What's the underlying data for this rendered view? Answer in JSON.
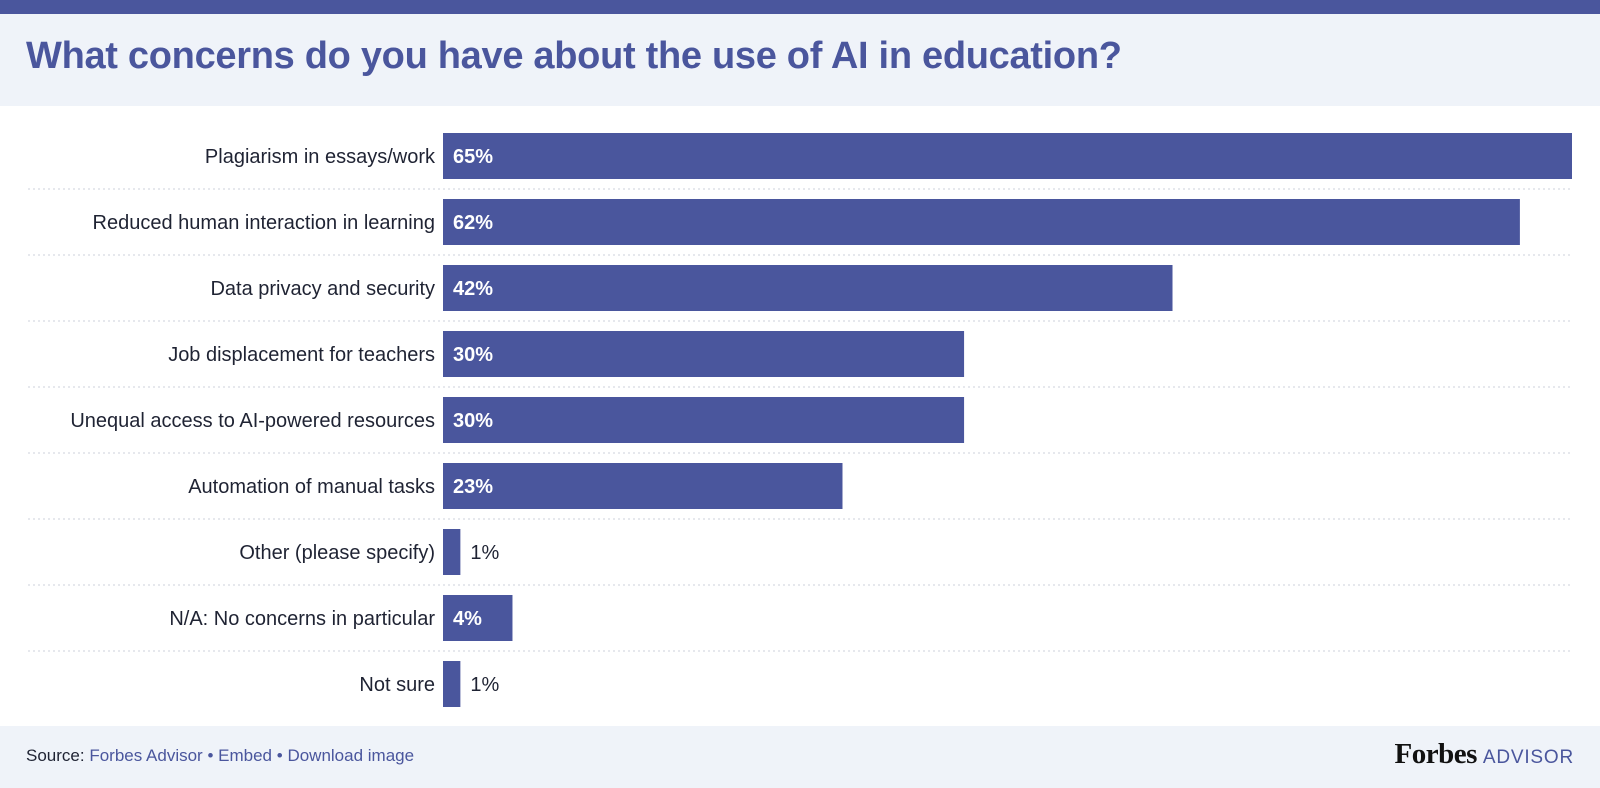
{
  "title": "What concerns do you have about the use of AI in education?",
  "chart_data": {
    "type": "bar",
    "orientation": "horizontal",
    "title": "What concerns do you have about the use of AI in education?",
    "categories": [
      "Plagiarism in essays/work",
      "Reduced human interaction in learning",
      "Data privacy and security",
      "Job displacement for teachers",
      "Unequal access to AI-powered resources",
      "Automation of manual tasks",
      "Other (please specify)",
      "N/A: No concerns in particular",
      "Not sure"
    ],
    "values": [
      65,
      62,
      42,
      30,
      30,
      23,
      1,
      4,
      1
    ],
    "value_labels": [
      "65%",
      "62%",
      "42%",
      "30%",
      "30%",
      "23%",
      "1%",
      "4%",
      "1%"
    ],
    "unit": "%",
    "xlim": [
      0,
      65
    ],
    "grid": false,
    "legend": "none",
    "colors": {
      "bar": "#4a569d",
      "title": "#4a569d",
      "label_inside": "#ffffff",
      "label_outside": "#1f2333",
      "separator": "#cdd1db"
    }
  },
  "footer": {
    "source_prefix": "Source:",
    "links": [
      "Forbes Advisor",
      "Embed",
      "Download image"
    ],
    "separator": "•",
    "brand_name": "Forbes",
    "brand_suffix": "ADVISOR"
  }
}
